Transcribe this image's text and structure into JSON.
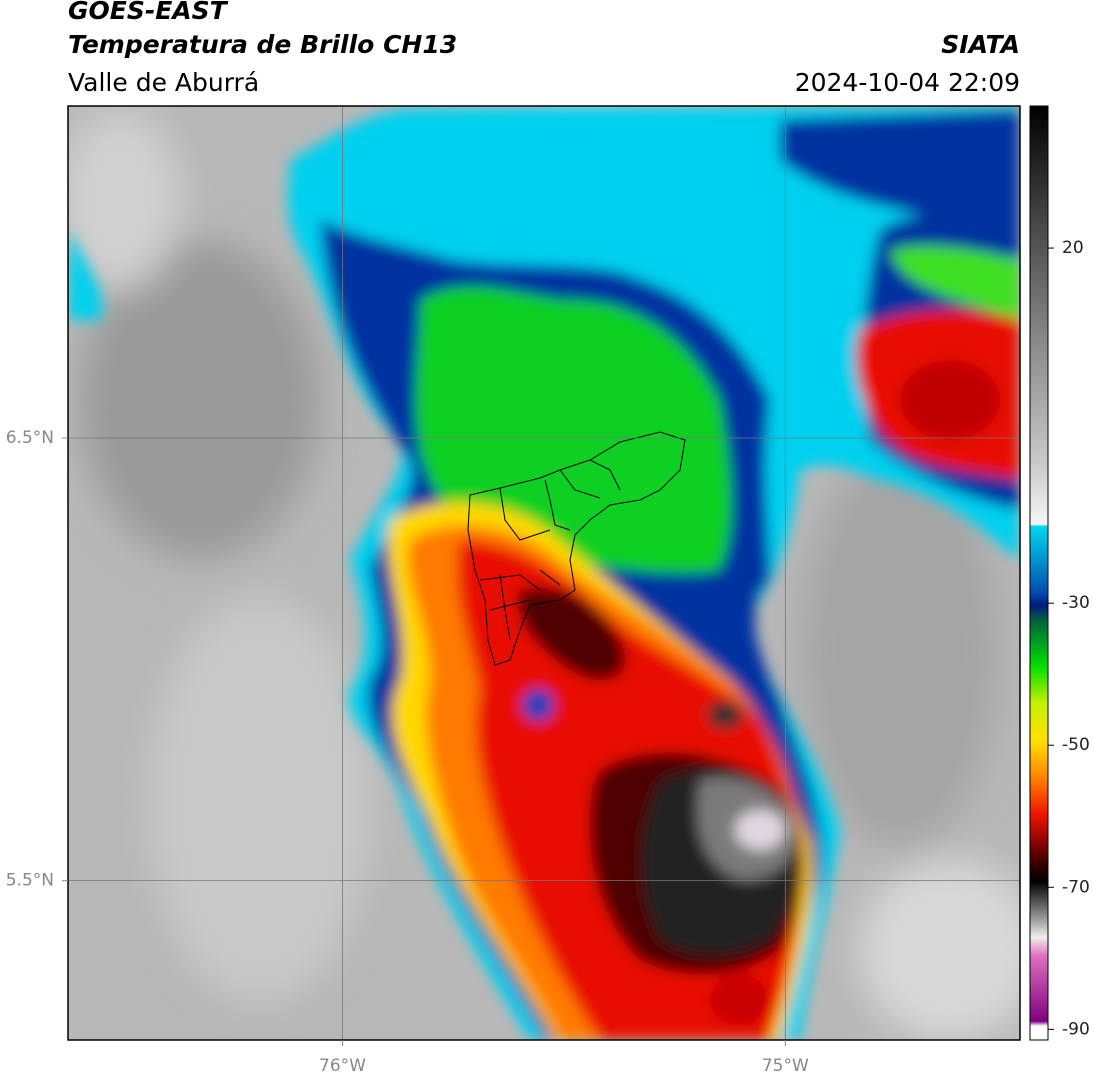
{
  "header": {
    "title": "GOES-EAST",
    "subtitle": "Temperatura de Brillo CH13",
    "region": "Valle de Aburrá",
    "source": "SIATA",
    "datetime": "2024-10-04 22:09"
  },
  "map": {
    "xlim": [
      -76.62,
      -74.47
    ],
    "ylim": [
      5.14,
      7.25
    ],
    "xticks": [
      {
        "value": -76,
        "label": "76°W"
      },
      {
        "value": -75,
        "label": "75°W"
      }
    ],
    "yticks": [
      {
        "value": 6.5,
        "label": "6.5°N"
      },
      {
        "value": 5.5,
        "label": "5.5°N"
      }
    ],
    "grid": true
  },
  "colorbar": {
    "lim": [
      -91.5,
      40
    ],
    "ticks": [
      20,
      -30,
      -50,
      -70,
      -90
    ]
  }
}
